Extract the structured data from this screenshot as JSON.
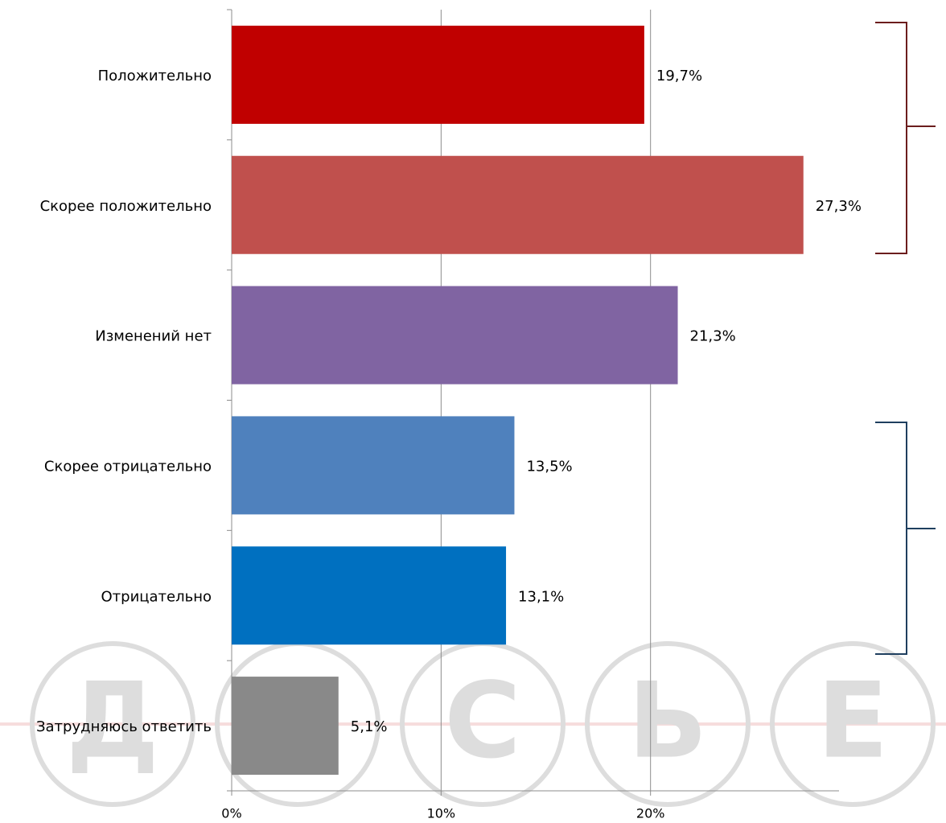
{
  "chart_data": {
    "type": "bar",
    "orientation": "horizontal",
    "categories": [
      "Положительно",
      "Скорее положительно",
      "Изменений нет",
      "Скорее отрицательно",
      "Отрицательно",
      "Затрудняюсь ответить"
    ],
    "values": [
      19.7,
      27.3,
      21.3,
      13.5,
      13.1,
      5.1
    ],
    "value_labels": [
      "19,7%",
      "27,3%",
      "21,3%",
      "13,5%",
      "13,1%",
      "5,1%"
    ],
    "colors": [
      "#c00000",
      "#c0504d",
      "#8064a2",
      "#4f81bd",
      "#0070c0",
      "#898989"
    ],
    "xlim": [
      0,
      29
    ],
    "xticks": [
      {
        "value": 0,
        "label": "0%"
      },
      {
        "value": 10,
        "label": "10%"
      },
      {
        "value": 20,
        "label": "20%"
      }
    ],
    "grid": true,
    "watermark": [
      "Д",
      "О",
      "С",
      "Ь",
      "Е"
    ]
  }
}
